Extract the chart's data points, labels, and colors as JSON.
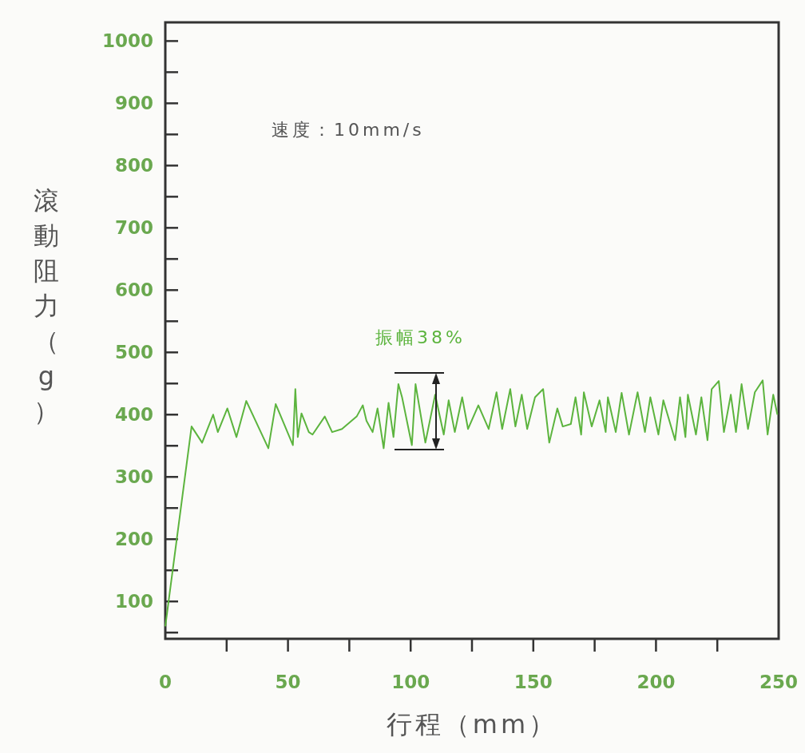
{
  "chart_data": {
    "type": "line",
    "xlabel": "行程（mm）",
    "ylabel": "滾動阻力（g）",
    "annotations": [
      "速度：10mm/s",
      "振幅38%"
    ],
    "xlim": [
      0,
      250
    ],
    "ylim": [
      40,
      1030
    ],
    "xticks": [
      0,
      {
        "value": 25,
        "label": null
      },
      50,
      {
        "value": 75,
        "label": null
      },
      100,
      {
        "value": 125,
        "label": null
      },
      150,
      {
        "value": 175,
        "label": null
      },
      200,
      {
        "value": 225,
        "label": null
      },
      250
    ],
    "yticks": [
      {
        "value": 50,
        "label": null
      },
      100,
      {
        "value": 150,
        "label": null
      },
      200,
      {
        "value": 250,
        "label": null
      },
      300,
      {
        "value": 350,
        "label": null
      },
      400,
      {
        "value": 450,
        "label": null
      },
      500,
      {
        "value": 550,
        "label": null
      },
      600,
      {
        "value": 650,
        "label": null
      },
      700,
      {
        "value": 750,
        "label": null
      },
      800,
      {
        "value": 850,
        "label": null
      },
      900,
      {
        "value": 950,
        "label": null
      },
      1000
    ],
    "grid": false,
    "legend": false,
    "marker": "none",
    "line_style": "solid",
    "series": [
      {
        "color": "#5cb43e",
        "x": [
          0,
          10.7,
          15,
          19.5,
          21.4,
          25.3,
          29,
          33,
          42,
          45,
          52,
          53,
          54,
          55.5,
          58.5,
          60,
          65,
          68,
          72,
          78,
          80.5,
          82,
          84.5,
          86.5,
          89,
          91,
          93,
          95,
          96.5,
          100.5,
          102,
          106,
          110,
          113.5,
          115.5,
          118,
          121,
          123.4,
          127.6,
          131.8,
          135,
          137.3,
          140.6,
          142.7,
          145.3,
          147.5,
          150.7,
          154,
          156.5,
          159.8,
          162,
          165.3,
          167.2,
          169.5,
          170.6,
          173.8,
          177,
          179.5,
          180.4,
          183.6,
          186,
          189,
          192.5,
          195.5,
          197.7,
          201,
          203,
          207.8,
          209.8,
          212,
          213,
          216.3,
          218.5,
          221,
          222.7,
          225.6,
          227.7,
          230.5,
          232.6,
          234.9,
          237.5,
          240.3,
          243.5,
          245.5,
          247.8,
          249.5
        ],
        "values": [
          60,
          381,
          355,
          400,
          372,
          410,
          364,
          422,
          346,
          417,
          351,
          441,
          364,
          402,
          372,
          368,
          397,
          372,
          377,
          397,
          415,
          390,
          372,
          410,
          346,
          419,
          364,
          449,
          428,
          351,
          449,
          355,
          432,
          368,
          423,
          372,
          428,
          377,
          415,
          377,
          436,
          377,
          441,
          381,
          432,
          377,
          428,
          441,
          355,
          410,
          381,
          385,
          428,
          368,
          436,
          381,
          423,
          372,
          428,
          372,
          435,
          368,
          436,
          372,
          428,
          368,
          423,
          359,
          428,
          364,
          432,
          368,
          428,
          359,
          441,
          454,
          372,
          432,
          372,
          449,
          377,
          436,
          455,
          368,
          432,
          400
        ]
      }
    ]
  }
}
